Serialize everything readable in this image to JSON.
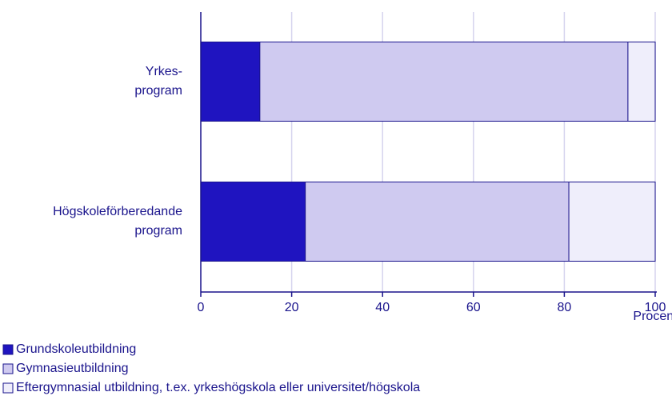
{
  "chart_data": {
    "type": "stacked-barh",
    "categories": [
      [
        "Yrkes-",
        "program"
      ],
      [
        "Högskoleförberedande",
        "program"
      ]
    ],
    "series": [
      {
        "name": "Grundskoleutbildning",
        "color": "#1f14c0",
        "values": [
          13,
          23
        ]
      },
      {
        "name": "Gymnasieutbildning",
        "color": "#cfcaf0",
        "values": [
          81,
          58
        ]
      },
      {
        "name": "Eftergymnasial utbildning, t.ex. yrkeshögskola eller universitet/högskola",
        "color": "#efeefb",
        "values": [
          6,
          19
        ]
      }
    ],
    "xlabel": "Procent",
    "xlim": [
      0,
      100
    ],
    "xticks": [
      0,
      20,
      40,
      60,
      80,
      100
    ],
    "grid": true,
    "legend": "bottom-left"
  }
}
